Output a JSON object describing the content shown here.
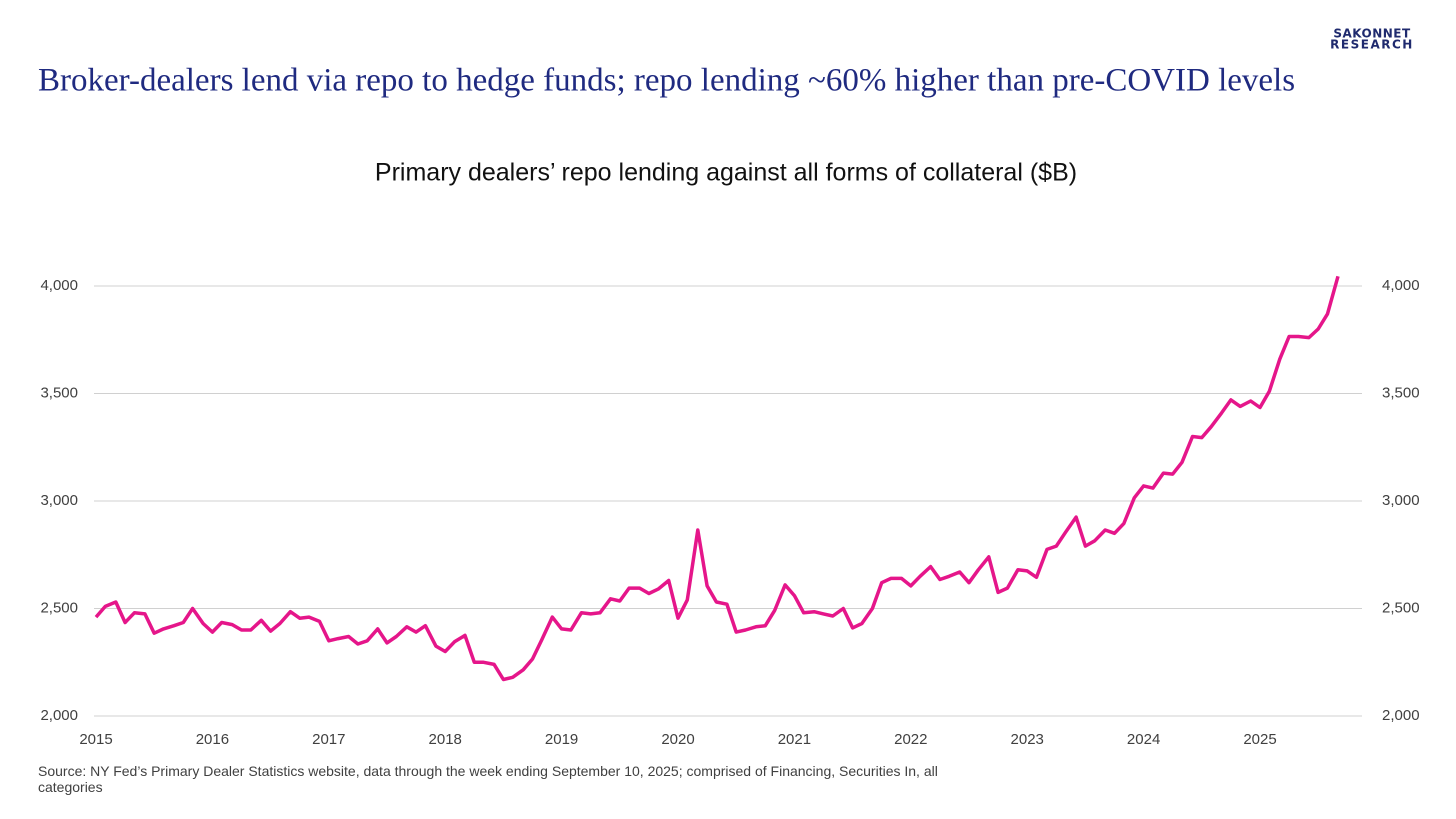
{
  "brand": [
    "SAKONNET",
    "RESEARCH"
  ],
  "chart_data": {
    "type": "line",
    "title": "Broker-dealers lend via repo to hedge funds; repo lending ~60% higher than pre-COVID levels",
    "subtitle": "Primary dealers’ repo lending against all forms of collateral ($B)",
    "source": "Source: NY Fed’s Primary Dealer Statistics website, data through the week ending September 10, 2025; comprised of Financing, Securities In, all categories",
    "x": [
      2015,
      2015.08,
      2015.17,
      2015.25,
      2015.33,
      2015.42,
      2015.5,
      2015.58,
      2015.67,
      2015.75,
      2015.83,
      2015.92,
      2016,
      2016.08,
      2016.17,
      2016.25,
      2016.33,
      2016.42,
      2016.5,
      2016.58,
      2016.67,
      2016.75,
      2016.83,
      2016.92,
      2017,
      2017.08,
      2017.17,
      2017.25,
      2017.33,
      2017.42,
      2017.5,
      2017.58,
      2017.67,
      2017.75,
      2017.83,
      2017.92,
      2018,
      2018.08,
      2018.17,
      2018.25,
      2018.33,
      2018.42,
      2018.5,
      2018.58,
      2018.67,
      2018.75,
      2018.83,
      2018.92,
      2019,
      2019.08,
      2019.17,
      2019.25,
      2019.33,
      2019.42,
      2019.5,
      2019.58,
      2019.67,
      2019.75,
      2019.83,
      2019.92,
      2020,
      2020.08,
      2020.17,
      2020.25,
      2020.33,
      2020.42,
      2020.5,
      2020.58,
      2020.67,
      2020.75,
      2020.83,
      2020.92,
      2021,
      2021.08,
      2021.17,
      2021.25,
      2021.33,
      2021.42,
      2021.5,
      2021.58,
      2021.67,
      2021.75,
      2021.83,
      2021.92,
      2022,
      2022.08,
      2022.17,
      2022.25,
      2022.33,
      2022.42,
      2022.5,
      2022.58,
      2022.67,
      2022.75,
      2022.83,
      2022.92,
      2023,
      2023.08,
      2023.17,
      2023.25,
      2023.33,
      2023.42,
      2023.5,
      2023.58,
      2023.67,
      2023.75,
      2023.83,
      2023.92,
      2024,
      2024.08,
      2024.17,
      2024.25,
      2024.33,
      2024.42,
      2024.5,
      2024.58,
      2024.67,
      2024.75,
      2024.83,
      2024.92,
      2025,
      2025.08,
      2025.17,
      2025.25,
      2025.33,
      2025.42,
      2025.5,
      2025.58,
      2025.67
    ],
    "series": [
      {
        "color": "#e5168a",
        "values": [
          2460,
          2510,
          2530,
          2435,
          2480,
          2475,
          2385,
          2405,
          2420,
          2435,
          2500,
          2430,
          2390,
          2435,
          2425,
          2400,
          2400,
          2445,
          2395,
          2430,
          2485,
          2455,
          2460,
          2440,
          2350,
          2360,
          2370,
          2335,
          2350,
          2405,
          2340,
          2370,
          2415,
          2390,
          2420,
          2325,
          2300,
          2345,
          2375,
          2250,
          2250,
          2240,
          2170,
          2180,
          2215,
          2265,
          2355,
          2460,
          2405,
          2400,
          2480,
          2475,
          2480,
          2545,
          2535,
          2595,
          2595,
          2570,
          2590,
          2630,
          2455,
          2540,
          2865,
          2605,
          2530,
          2520,
          2390,
          2400,
          2415,
          2420,
          2490,
          2610,
          2560,
          2480,
          2485,
          2475,
          2465,
          2500,
          2410,
          2430,
          2500,
          2620,
          2640,
          2640,
          2605,
          2650,
          2695,
          2635,
          2650,
          2670,
          2620,
          2680,
          2740,
          2575,
          2595,
          2680,
          2675,
          2645,
          2775,
          2790,
          2855,
          2925,
          2790,
          2815,
          2865,
          2850,
          2895,
          3015,
          3070,
          3060,
          3130,
          3125,
          3180,
          3300,
          3295,
          3345,
          3410,
          3470,
          3440,
          3465,
          3435,
          3510,
          3660,
          3765,
          3765,
          3760,
          3800,
          3870,
          4045
        ]
      }
    ],
    "xlim": [
      2015,
      2025.67
    ],
    "xticks": [
      2015,
      2016,
      2017,
      2018,
      2019,
      2020,
      2021,
      2022,
      2023,
      2024,
      2025
    ],
    "ylim": [
      2000,
      4000
    ],
    "yticks": [
      {
        "value": 2000,
        "label": "2,000"
      },
      {
        "value": 2500,
        "label": "2,500"
      },
      {
        "value": 3000,
        "label": "3,000"
      },
      {
        "value": 3500,
        "label": "3,500"
      },
      {
        "value": 4000,
        "label": "4,000"
      }
    ],
    "y2lim": [
      2000,
      4000
    ],
    "y2ticks": [
      {
        "value": 2000,
        "label": "2,000"
      },
      {
        "value": 2500,
        "label": "2,500"
      },
      {
        "value": 3000,
        "label": "3,000"
      },
      {
        "value": 3500,
        "label": "3,500"
      },
      {
        "value": 4000,
        "label": "4,000"
      }
    ],
    "grid": true
  }
}
